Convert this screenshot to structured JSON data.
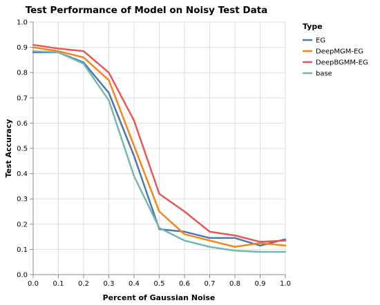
{
  "chart_data": {
    "type": "line",
    "title": "Test Performance of Model on Noisy Test Data",
    "xlabel": "Percent of Gaussian Noise",
    "ylabel": "Test Accuracy",
    "xlim": [
      0,
      1
    ],
    "ylim": [
      0,
      1
    ],
    "x_ticks": [
      "0.0",
      "0.1",
      "0.2",
      "0.3",
      "0.4",
      "0.5",
      "0.6",
      "0.7",
      "0.8",
      "0.9",
      "1.0"
    ],
    "y_ticks": [
      "0.0",
      "0.1",
      "0.2",
      "0.3",
      "0.4",
      "0.5",
      "0.6",
      "0.7",
      "0.8",
      "0.9",
      "1.0"
    ],
    "grid": true,
    "legend_title": "Type",
    "legend_position": "right",
    "x": [
      0.0,
      0.1,
      0.2,
      0.3,
      0.4,
      0.5,
      0.6,
      0.7,
      0.8,
      0.9,
      1.0
    ],
    "series": [
      {
        "name": "EG",
        "color": "#4c78a8",
        "values": [
          0.88,
          0.88,
          0.84,
          0.72,
          0.47,
          0.18,
          0.17,
          0.145,
          0.145,
          0.115,
          0.14
        ]
      },
      {
        "name": "DeepMGM-EG",
        "color": "#f58518",
        "values": [
          0.9,
          0.885,
          0.86,
          0.77,
          0.51,
          0.25,
          0.16,
          0.135,
          0.11,
          0.125,
          0.115
        ]
      },
      {
        "name": "DeepBGMM-EG",
        "color": "#e45756",
        "values": [
          0.91,
          0.895,
          0.885,
          0.8,
          0.61,
          0.32,
          0.25,
          0.17,
          0.155,
          0.13,
          0.135
        ]
      },
      {
        "name": "base",
        "color": "#72b7b2",
        "values": [
          0.885,
          0.88,
          0.835,
          0.69,
          0.39,
          0.185,
          0.135,
          0.11,
          0.095,
          0.09,
          0.09
        ]
      }
    ]
  }
}
